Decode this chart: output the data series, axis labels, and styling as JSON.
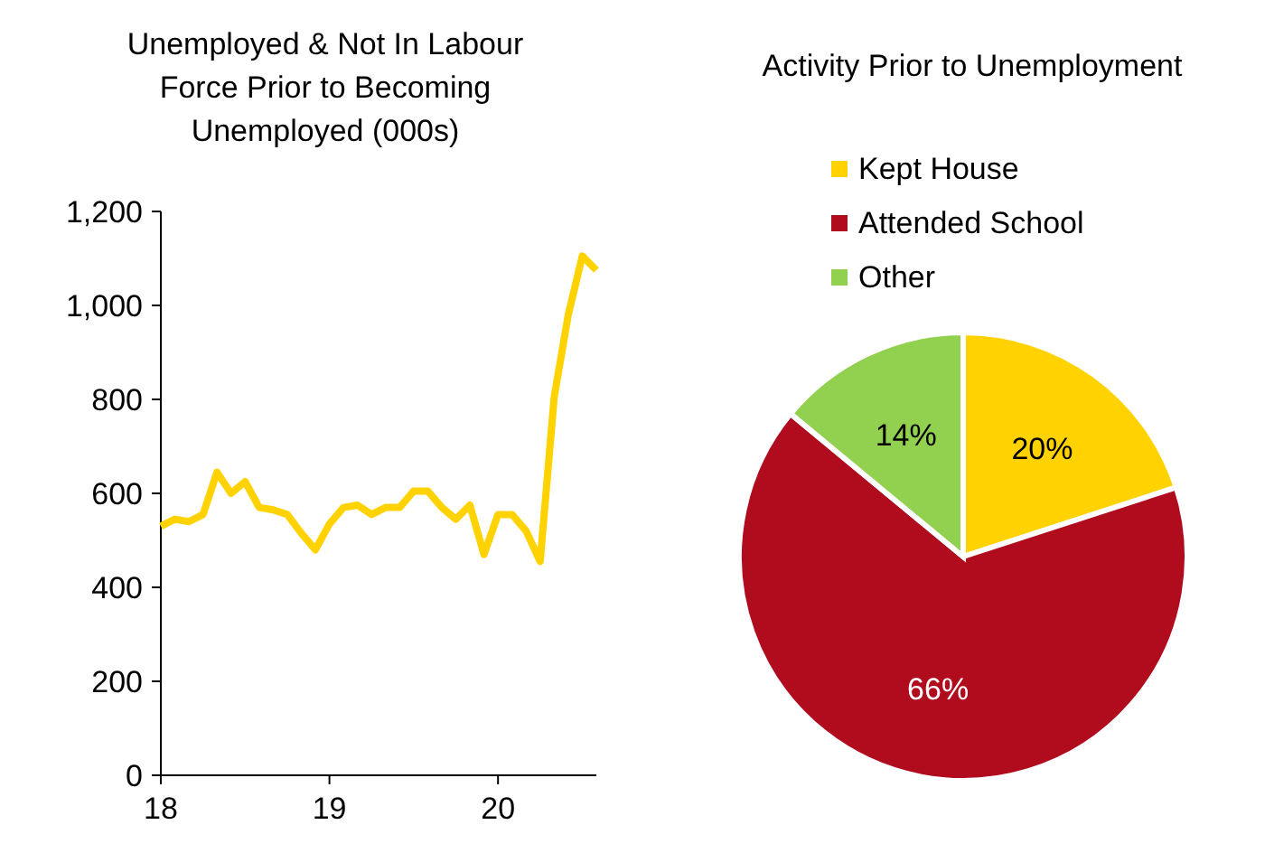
{
  "chart_data": [
    {
      "type": "line",
      "title": "Unemployed & Not In Labour\nForce Prior to Becoming\nUnemployed (000s)",
      "x": [
        18,
        18.0833,
        18.1667,
        18.25,
        18.3333,
        18.4167,
        18.5,
        18.5833,
        18.6667,
        18.75,
        18.8333,
        18.9167,
        19,
        19.0833,
        19.1667,
        19.25,
        19.3333,
        19.4167,
        19.5,
        19.5833,
        19.6667,
        19.75,
        19.8333,
        19.9167,
        20,
        20.0833,
        20.1667,
        20.25,
        20.3333,
        20.4167,
        20.5,
        20.5833
      ],
      "series": [
        {
          "color": "#ffd200",
          "values": [
            530,
            545,
            540,
            555,
            645,
            600,
            625,
            570,
            565,
            555,
            515,
            480,
            535,
            570,
            575,
            555,
            570,
            570,
            605,
            605,
            570,
            545,
            575,
            470,
            555,
            555,
            520,
            455,
            805,
            980,
            1105,
            1075
          ]
        }
      ],
      "xlim": [
        18,
        20.5833
      ],
      "xticks": [
        18,
        19,
        20
      ],
      "ylim": [
        0,
        1200
      ],
      "yticks": [
        0,
        200,
        400,
        600,
        800,
        {
          "value": 1000,
          "label": "1,000"
        },
        {
          "value": 1200,
          "label": "1,200"
        }
      ],
      "grid": false,
      "legend": false,
      "line_style": "solid"
    },
    {
      "type": "pie",
      "title": "Activity Prior to Unemployment",
      "categories": [
        "Kept House",
        "Attended School",
        "Other"
      ],
      "values": [
        20,
        66,
        14
      ],
      "colors": [
        "#ffd200",
        "#b00c1e",
        "#92d050"
      ],
      "value_labels": [
        "20%",
        "66%",
        "14%"
      ],
      "legend": "top"
    }
  ]
}
